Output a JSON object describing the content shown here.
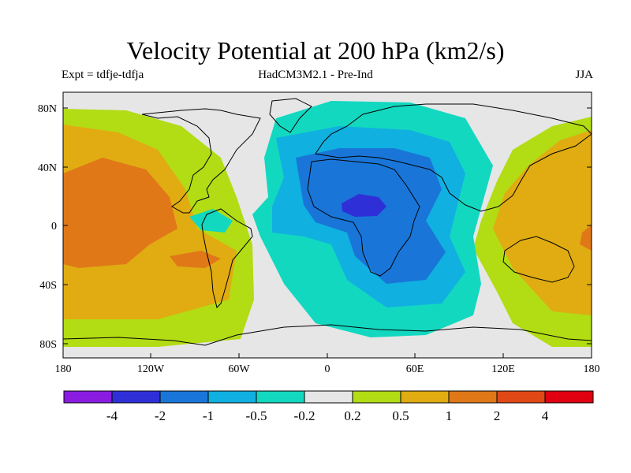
{
  "title": "Velocity Potential at 200 hPa (km2/s)",
  "subtitle_left": "Expt = tdfje-tdfja",
  "subtitle_center": "HadCM3M2.1 - Pre-Ind",
  "subtitle_right": "JJA",
  "y_axis_labels": [
    "80N",
    "40N",
    "0",
    "40S",
    "80S"
  ],
  "x_axis_labels": [
    "180",
    "120W",
    "60W",
    "0",
    "60E",
    "120E",
    "180"
  ],
  "colorbar": {
    "labels": [
      "-4",
      "-2",
      "-1",
      "-0.5",
      "-0.2",
      "0.2",
      "0.5",
      "1",
      "2",
      "4"
    ],
    "colors": [
      "#8a1be0",
      "#2f2fd8",
      "#1976d8",
      "#10b0e0",
      "#12d8c0",
      "#e6e6e6",
      "#b2dc14",
      "#e0ac12",
      "#e07818",
      "#e04816",
      "#e00010"
    ]
  },
  "colors": {
    "background": "#e6e6e6",
    "land_outline": "#000000"
  }
}
